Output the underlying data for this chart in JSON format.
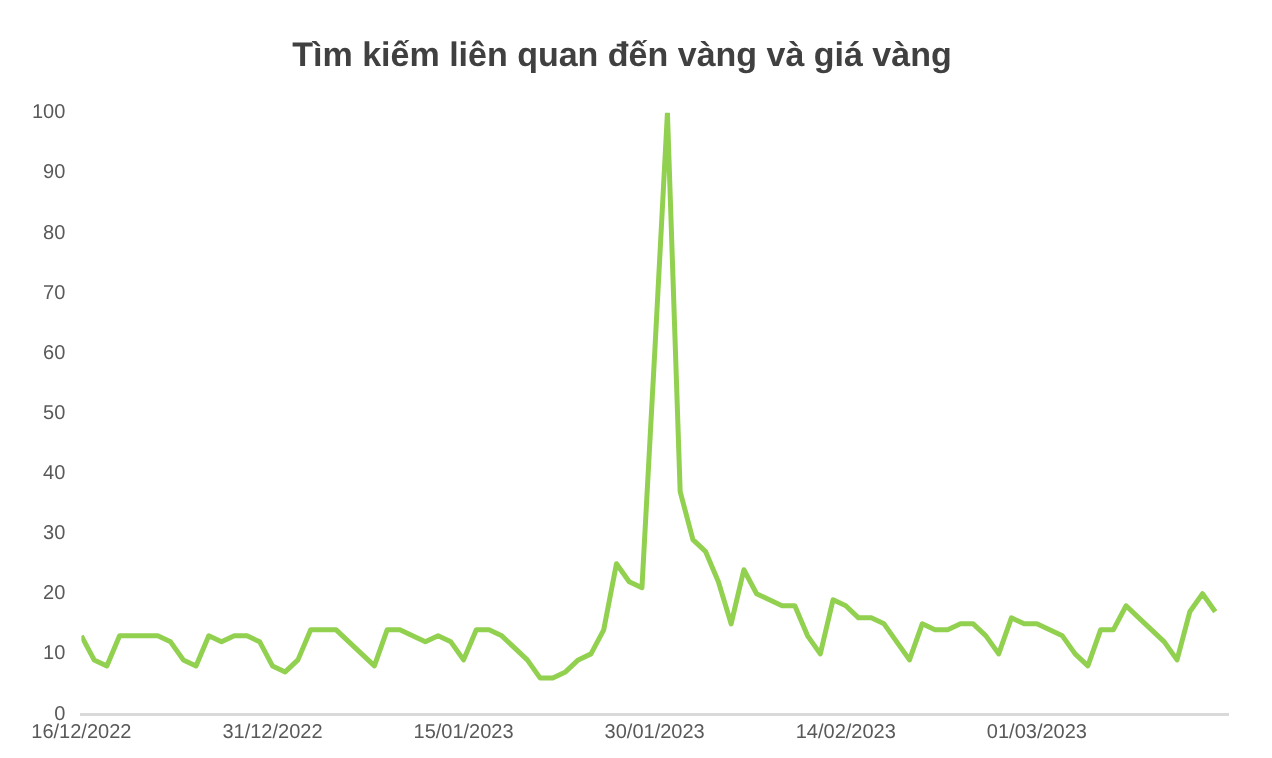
{
  "chart_data": {
    "type": "line",
    "title": "Tìm kiếm liên quan đến vàng và giá vàng",
    "x": [
      "2022-12-16",
      "2022-12-17",
      "2022-12-18",
      "2022-12-19",
      "2022-12-20",
      "2022-12-21",
      "2022-12-22",
      "2022-12-23",
      "2022-12-24",
      "2022-12-25",
      "2022-12-26",
      "2022-12-27",
      "2022-12-28",
      "2022-12-29",
      "2022-12-30",
      "2022-12-31",
      "2023-01-01",
      "2023-01-02",
      "2023-01-03",
      "2023-01-04",
      "2023-01-05",
      "2023-01-06",
      "2023-01-07",
      "2023-01-08",
      "2023-01-09",
      "2023-01-10",
      "2023-01-11",
      "2023-01-12",
      "2023-01-13",
      "2023-01-14",
      "2023-01-15",
      "2023-01-16",
      "2023-01-17",
      "2023-01-18",
      "2023-01-19",
      "2023-01-20",
      "2023-01-21",
      "2023-01-22",
      "2023-01-23",
      "2023-01-24",
      "2023-01-25",
      "2023-01-26",
      "2023-01-27",
      "2023-01-28",
      "2023-01-29",
      "2023-01-30",
      "2023-01-31",
      "2023-02-01",
      "2023-02-02",
      "2023-02-03",
      "2023-02-04",
      "2023-02-05",
      "2023-02-06",
      "2023-02-07",
      "2023-02-08",
      "2023-02-09",
      "2023-02-10",
      "2023-02-11",
      "2023-02-12",
      "2023-02-13",
      "2023-02-14",
      "2023-02-15",
      "2023-02-16",
      "2023-02-17",
      "2023-02-18",
      "2023-02-19",
      "2023-02-20",
      "2023-02-21",
      "2023-02-22",
      "2023-02-23",
      "2023-02-24",
      "2023-02-25",
      "2023-02-26",
      "2023-02-27",
      "2023-02-28",
      "2023-03-01",
      "2023-03-02",
      "2023-03-03",
      "2023-03-04",
      "2023-03-05",
      "2023-03-06",
      "2023-03-07",
      "2023-03-08",
      "2023-03-09",
      "2023-03-10",
      "2023-03-11",
      "2023-03-12",
      "2023-03-13",
      "2023-03-14",
      "2023-03-15"
    ],
    "series": [
      {
        "color": "#92d050",
        "values": [
          13,
          9,
          8,
          13,
          13,
          13,
          13,
          12,
          9,
          8,
          13,
          12,
          13,
          13,
          12,
          8,
          7,
          9,
          14,
          14,
          14,
          12,
          10,
          8,
          14,
          14,
          13,
          12,
          13,
          12,
          9,
          14,
          14,
          13,
          11,
          9,
          6,
          6,
          7,
          9,
          10,
          14,
          25,
          22,
          21,
          60,
          100,
          37,
          29,
          27,
          22,
          15,
          24,
          20,
          19,
          18,
          18,
          13,
          10,
          19,
          18,
          16,
          16,
          15,
          12,
          9,
          15,
          14,
          14,
          15,
          15,
          13,
          10,
          16,
          15,
          15,
          14,
          13,
          10,
          8,
          14,
          14,
          18,
          16,
          14,
          12,
          9,
          17,
          20,
          17
        ]
      }
    ],
    "xlim": [
      "2022-12-16",
      "2023-03-16"
    ],
    "xticks": [
      {
        "value": "2022-12-16",
        "label": "16/12/2022"
      },
      {
        "value": "2022-12-31",
        "label": "31/12/2022"
      },
      {
        "value": "2023-01-15",
        "label": "15/01/2023"
      },
      {
        "value": "2023-01-30",
        "label": "30/01/2023"
      },
      {
        "value": "2023-02-14",
        "label": "14/02/2023"
      },
      {
        "value": "2023-03-01",
        "label": "01/03/2023"
      }
    ],
    "ylim": [
      0,
      100
    ],
    "yticks": [
      0,
      10,
      20,
      30,
      40,
      50,
      60,
      70,
      80,
      90,
      100
    ],
    "grid": false,
    "legend": false,
    "marker": "none",
    "line_style": "solid"
  }
}
